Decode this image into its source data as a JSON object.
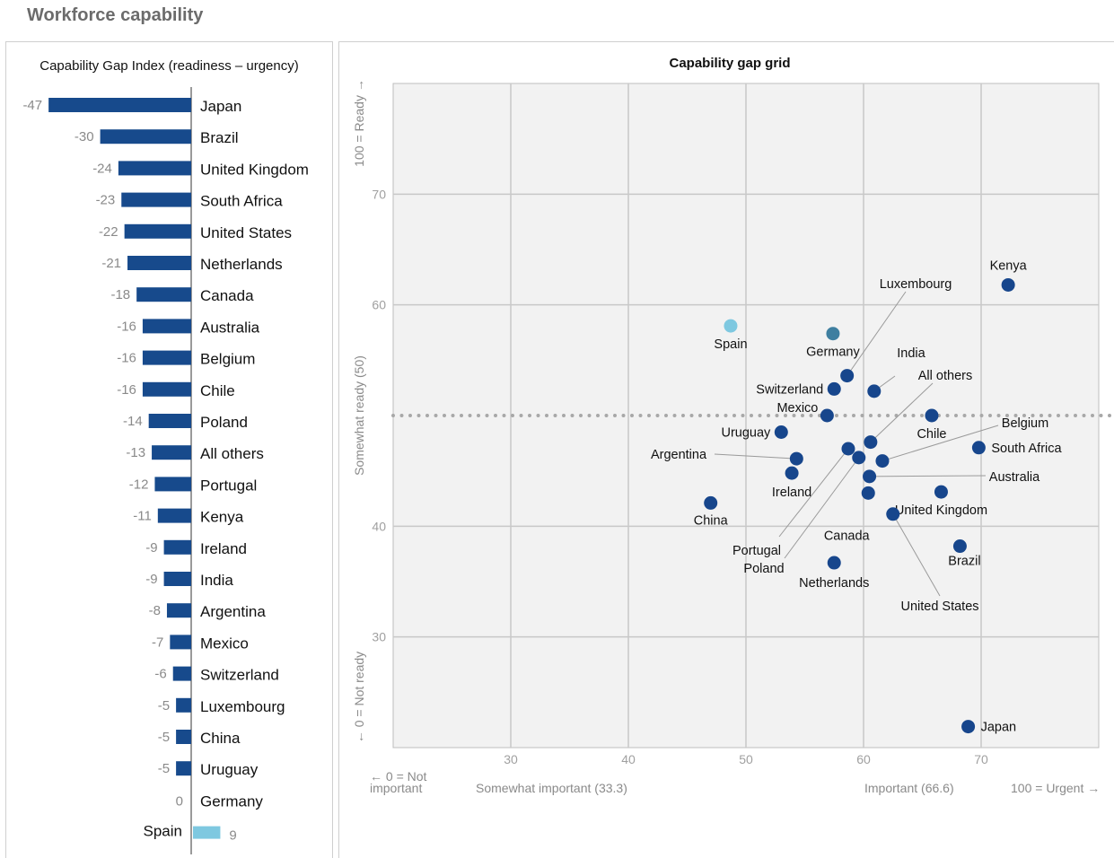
{
  "page": {
    "title": "Workforce capability"
  },
  "left_chart_title": "Capability Gap Index (readiness – urgency)",
  "right_chart_title": "Capability gap grid",
  "colors": {
    "bar": "#174a8c",
    "highlight": "#7ec8e0",
    "dot": "#17468c",
    "germany_dot": "#3f7fa0",
    "spain_dot": "#7ec8e0",
    "plot_bg": "#f2f2f2",
    "grid": "#c8c8c8",
    "muted_text": "#8a8a8a"
  },
  "chart_data": [
    {
      "type": "bar",
      "orientation": "horizontal",
      "title": "Capability Gap Index (readiness – urgency)",
      "categories": [
        "Japan",
        "Brazil",
        "United Kingdom",
        "South Africa",
        "United States",
        "Netherlands",
        "Canada",
        "Australia",
        "Belgium",
        "Chile",
        "Poland",
        "All others",
        "Portugal",
        "Kenya",
        "Ireland",
        "India",
        "Argentina",
        "Mexico",
        "Switzerland",
        "Luxembourg",
        "China",
        "Uruguay",
        "Germany",
        "Spain"
      ],
      "values": [
        -47,
        -30,
        -24,
        -23,
        -22,
        -21,
        -18,
        -16,
        -16,
        -16,
        -14,
        -13,
        -12,
        -11,
        -9,
        -9,
        -8,
        -7,
        -6,
        -5,
        -5,
        -5,
        0,
        9
      ],
      "value_labels": [
        "-47",
        "-30",
        "-24",
        "-23",
        "-22",
        "-21",
        "-18",
        "-16",
        "-16",
        "-16",
        "-14",
        "-13",
        "-12",
        "-11",
        "-9",
        "-9",
        "-8",
        "-7",
        "-6",
        "-5",
        "-5",
        "-5",
        "0",
        "9"
      ],
      "highlight": [
        "Spain"
      ]
    },
    {
      "type": "scatter",
      "title": "Capability gap grid",
      "x_axis": {
        "range": [
          20,
          80
        ],
        "ticks": [
          30,
          40,
          50,
          60,
          70
        ],
        "labels": {
          "left": "← 0 = Not important",
          "mid_low": "Somewhat important (33.3)",
          "mid_high": "Important (66.6)",
          "right": "100 = Urgent →"
        }
      },
      "y_axis": {
        "range": [
          20,
          80
        ],
        "ticks": [
          30,
          40,
          50,
          60,
          70
        ],
        "labels": {
          "top": "100 = Ready →",
          "mid": "Somewhat ready (50)",
          "bottom": "← 0 = Not ready"
        }
      },
      "reference_line_y": 50,
      "grid": true,
      "points": [
        {
          "name": "Kenya",
          "x": 72.3,
          "y": 61.8
        },
        {
          "name": "Spain",
          "x": 48.7,
          "y": 58.1
        },
        {
          "name": "Germany",
          "x": 57.4,
          "y": 57.4
        },
        {
          "name": "Luxembourg",
          "x": 58.6,
          "y": 53.6
        },
        {
          "name": "Switzerland",
          "x": 57.5,
          "y": 52.4
        },
        {
          "name": "India",
          "x": 60.9,
          "y": 52.2
        },
        {
          "name": "Mexico",
          "x": 56.9,
          "y": 50.0
        },
        {
          "name": "Chile",
          "x": 65.8,
          "y": 50.0
        },
        {
          "name": "Uruguay",
          "x": 53.0,
          "y": 48.5
        },
        {
          "name": "All others",
          "x": 60.6,
          "y": 47.6
        },
        {
          "name": "South Africa",
          "x": 69.8,
          "y": 47.1
        },
        {
          "name": "Portugal",
          "x": 58.7,
          "y": 47.0
        },
        {
          "name": "Poland",
          "x": 59.6,
          "y": 46.2
        },
        {
          "name": "Argentina",
          "x": 54.3,
          "y": 46.1
        },
        {
          "name": "Belgium",
          "x": 61.6,
          "y": 45.9
        },
        {
          "name": "Ireland",
          "x": 53.9,
          "y": 44.8
        },
        {
          "name": "Australia",
          "x": 60.5,
          "y": 44.5
        },
        {
          "name": "United Kingdom",
          "x": 66.6,
          "y": 43.1
        },
        {
          "name": "Canada",
          "x": 60.4,
          "y": 43.0
        },
        {
          "name": "China",
          "x": 47.0,
          "y": 42.1
        },
        {
          "name": "United States",
          "x": 62.5,
          "y": 41.1
        },
        {
          "name": "Brazil",
          "x": 68.2,
          "y": 38.2
        },
        {
          "name": "Netherlands",
          "x": 57.5,
          "y": 36.7
        },
        {
          "name": "Japan",
          "x": 68.9,
          "y": 21.9
        }
      ]
    }
  ]
}
